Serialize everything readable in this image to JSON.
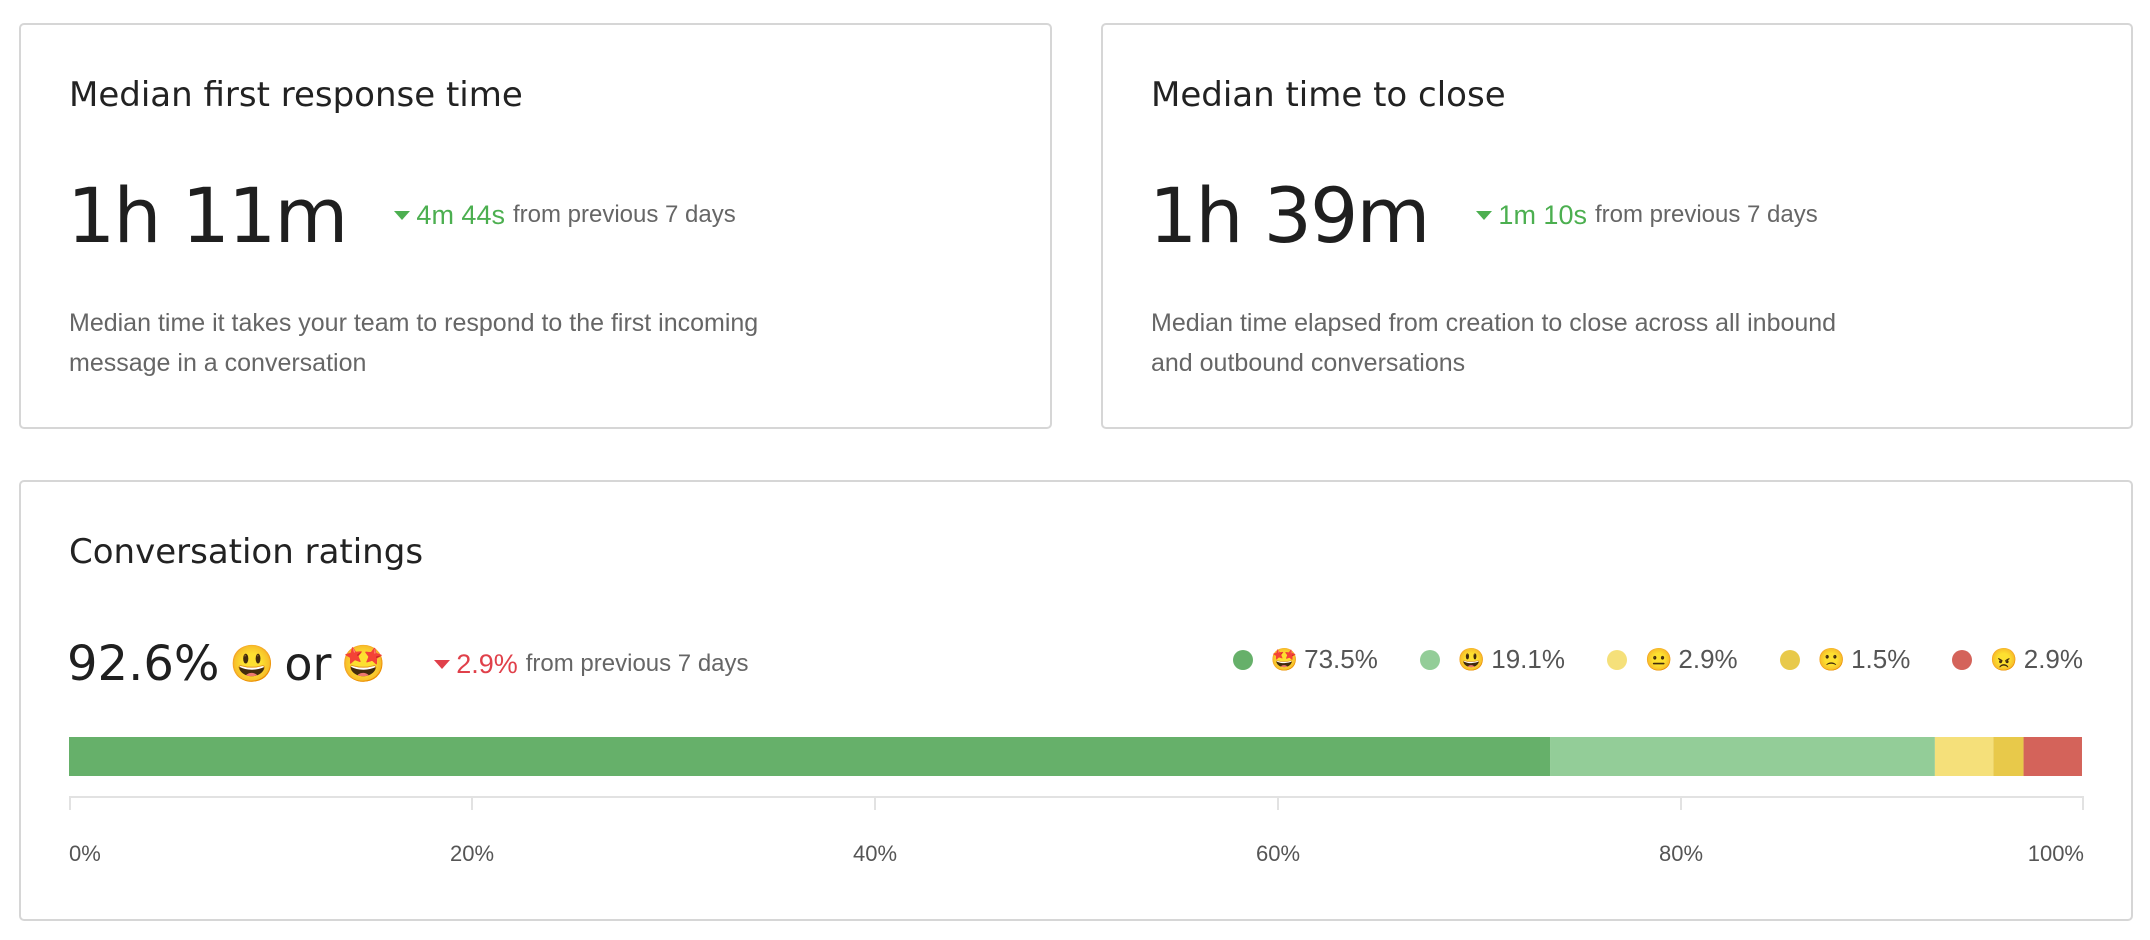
{
  "cards": [
    {
      "title": "Median first response time",
      "value": "1h 11m",
      "delta": "4m 44s",
      "delta_note": "from previous 7 days",
      "description": "Median time it takes your team to respond to the first incoming message in a conversation"
    },
    {
      "title": "Median time to close",
      "value": "1h 39m",
      "delta": "1m 10s",
      "delta_note": "from previous 7 days",
      "description": "Median time elapsed from creation to close across all inbound and outbound conversations"
    }
  ],
  "chart_data": {
    "type": "stacked-bar",
    "title": "Conversation ratings",
    "headline": "92.6%",
    "headline_emojis": [
      "😃",
      "🤩"
    ],
    "headline_joiner": "or",
    "change": "2.9%",
    "change_note": "from previous 7 days",
    "series": [
      {
        "name": "🤩",
        "color": "#66b06a",
        "values": [
          73.5
        ],
        "value_labels": [
          "73.5%"
        ]
      },
      {
        "name": "😃",
        "color": "#93cd98",
        "values": [
          19.1
        ],
        "value_labels": [
          "19.1%"
        ]
      },
      {
        "name": "😐",
        "color": "#f5e07a",
        "values": [
          2.9
        ],
        "value_labels": [
          "2.9%"
        ]
      },
      {
        "name": "🙁",
        "color": "#e8c94a",
        "values": [
          1.5
        ],
        "value_labels": [
          "1.5%"
        ]
      },
      {
        "name": "😠",
        "color": "#d4635a",
        "values": [
          2.9
        ],
        "value_labels": [
          "2.9%"
        ]
      }
    ],
    "xlim": [
      0,
      100
    ],
    "xticks": [
      {
        "value": 0,
        "label": "0%"
      },
      {
        "value": 20,
        "label": "20%"
      },
      {
        "value": 40,
        "label": "40%"
      },
      {
        "value": 60,
        "label": "60%"
      },
      {
        "value": 80,
        "label": "80%"
      },
      {
        "value": 100,
        "label": "100%"
      }
    ]
  }
}
